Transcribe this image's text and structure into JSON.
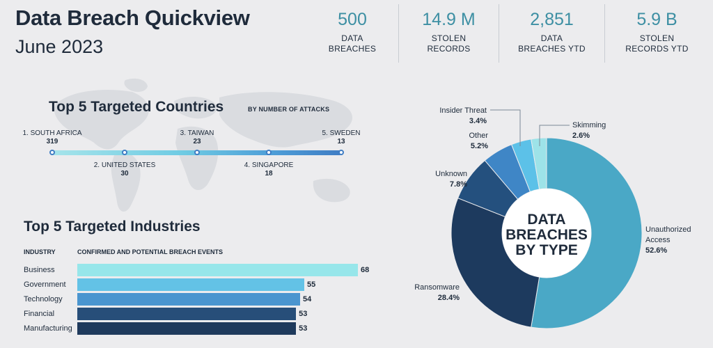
{
  "header": {
    "title": "Data Breach Quickview",
    "subtitle": "June 2023"
  },
  "stats": [
    {
      "value": "500",
      "label_line1": "DATA",
      "label_line2": "BREACHES"
    },
    {
      "value": "14.9 M",
      "label_line1": "STOLEN",
      "label_line2": "RECORDS"
    },
    {
      "value": "2,851",
      "label_line1": "DATA",
      "label_line2": "BREACHES YTD"
    },
    {
      "value": "5.9 B",
      "label_line1": "STOLEN",
      "label_line2": "RECORDS YTD"
    }
  ],
  "colors": {
    "accent": "#3d8fa3",
    "navy": "#1f3a5c",
    "text": "#1f2b3b"
  },
  "chart_data": [
    {
      "type": "timeline",
      "title": "Top 5 Targeted Countries",
      "subtitle": "BY NUMBER OF ATTACKS",
      "categories": [
        "1. SOUTH AFRICA",
        "2. UNITED STATES",
        "3. TAIWAN",
        "4. SINGAPORE",
        "5. SWEDEN"
      ],
      "values": [
        319,
        30,
        23,
        18,
        13
      ],
      "value_labels": [
        "319",
        "30",
        "23",
        "18",
        "13"
      ]
    },
    {
      "type": "bar",
      "orientation": "horizontal",
      "title": "Top 5 Targeted Industries",
      "xlabel": "CONFIRMED AND POTENTIAL BREACH EVENTS",
      "ylabel": "INDUSTRY",
      "categories": [
        "Business",
        "Government",
        "Technology",
        "Financial",
        "Manufacturing"
      ],
      "values": [
        68,
        55,
        54,
        53,
        53
      ],
      "value_labels": [
        "68",
        "55",
        "54",
        "53",
        "53"
      ],
      "colors": [
        "#97e6ea",
        "#63c2e6",
        "#4a95cf",
        "#274e79",
        "#1f3a5c"
      ],
      "xlim": [
        0,
        68
      ]
    },
    {
      "type": "pie",
      "donut": true,
      "center_text": [
        "DATA",
        "BREACHES",
        "BY TYPE"
      ],
      "categories": [
        "Unauthorized Access",
        "Ransomware",
        "Unknown",
        "Other",
        "Insider Threat",
        "Skimming"
      ],
      "label_lines": [
        [
          "Unauthorized",
          "Access"
        ],
        [
          "Ransomware"
        ],
        [
          "Unknown"
        ],
        [
          "Other"
        ],
        [
          "Insider Threat"
        ],
        [
          "Skimming"
        ]
      ],
      "values": [
        52.6,
        28.4,
        7.8,
        5.2,
        3.4,
        2.6
      ],
      "value_labels": [
        "52.6%",
        "28.4%",
        "7.8%",
        "5.2%",
        "3.4%",
        "2.6%"
      ],
      "colors": [
        "#4aa8c6",
        "#1d3a5e",
        "#24507e",
        "#3f86c6",
        "#5cc1e8",
        "#9de3e8"
      ]
    }
  ]
}
